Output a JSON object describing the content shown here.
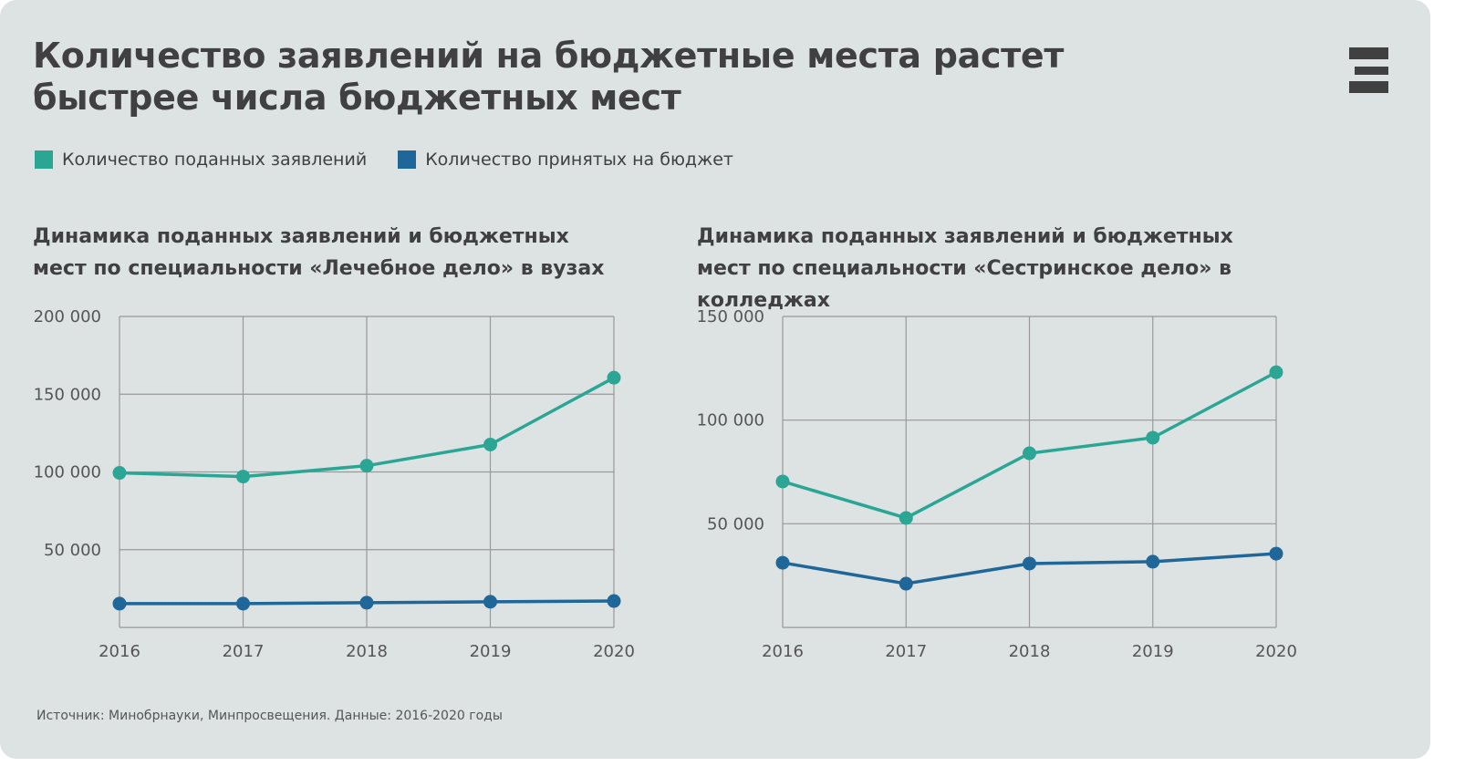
{
  "title": "Количество заявлений на бюджетные места растет быстрее числа бюджетных мест",
  "legend": [
    {
      "label": "Количество поданных заявлений",
      "color": "#2ba695"
    },
    {
      "label": "Количество принятых на бюджет",
      "color": "#1f6699"
    }
  ],
  "source": "Источник: Минобрнауки, Минпросвещения. Данные: 2016-2020 годы",
  "chart_data": [
    {
      "type": "line",
      "title": "Динамика поданных заявлений и бюджетных мест по специальности «Лечебное дело» в вузах",
      "categories": [
        "2016",
        "2017",
        "2018",
        "2019",
        "2020"
      ],
      "ylim": [
        0,
        200000
      ],
      "yticks": [
        {
          "v": 50000,
          "label": "50 000"
        },
        {
          "v": 100000,
          "label": "100 000"
        },
        {
          "v": 150000,
          "label": "150 000"
        },
        {
          "v": 200000,
          "label": "200 000"
        }
      ],
      "grid": true,
      "series": [
        {
          "name": "Количество поданных заявлений",
          "color": "#2ba695",
          "values": [
            99400,
            97000,
            104000,
            117600,
            160600
          ]
        },
        {
          "name": "Количество принятых на бюджет",
          "color": "#1f6699",
          "values": [
            15300,
            15300,
            15900,
            16500,
            17000
          ]
        }
      ]
    },
    {
      "type": "line",
      "title": "Динамика поданных заявлений и бюджетных мест по специальности «Сестринское дело» в колледжах",
      "categories": [
        "2016",
        "2017",
        "2018",
        "2019",
        "2020"
      ],
      "ylim": [
        0,
        150000
      ],
      "yticks": [
        {
          "v": 50000,
          "label": "50 000"
        },
        {
          "v": 100000,
          "label": "100 000"
        },
        {
          "v": 150000,
          "label": "150 000"
        }
      ],
      "grid": true,
      "series": [
        {
          "name": "Количество поданных заявлений",
          "color": "#2ba695",
          "values": [
            70400,
            52800,
            84000,
            91500,
            123100
          ]
        },
        {
          "name": "Количество принятых на бюджет",
          "color": "#1f6699",
          "values": [
            31200,
            21100,
            30800,
            31700,
            35600
          ]
        }
      ]
    }
  ]
}
